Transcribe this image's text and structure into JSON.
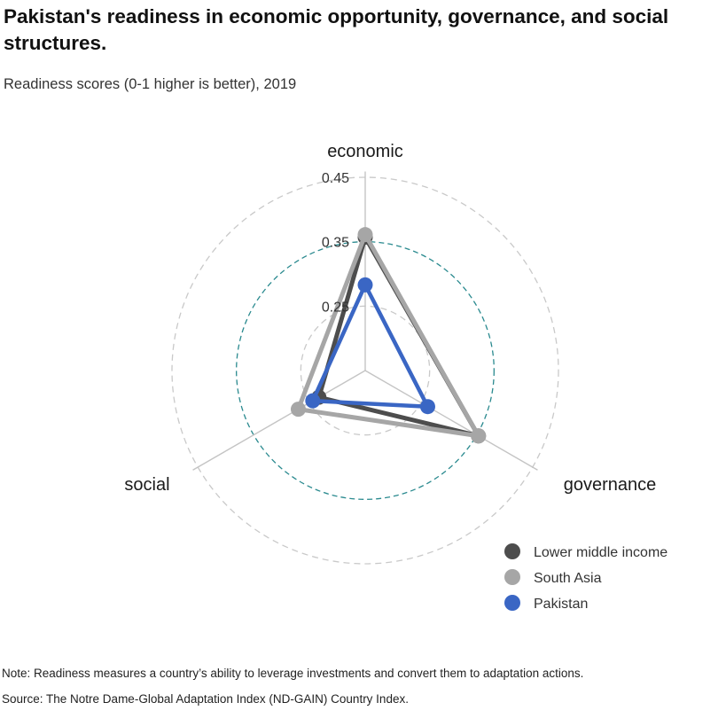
{
  "title": "Pakistan's readiness in economic opportunity, governance, and social structures.",
  "subtitle": "Readiness scores (0-1 higher is better), 2019",
  "note": "Note: Readiness measures a country’s ability to leverage investments and convert them to adaptation actions.",
  "source": "Source: The Notre Dame-Global Adaptation Index (ND-GAIN) Country Index.",
  "colors": {
    "lower_middle_income": "#4d4d4d",
    "south_asia": "#a6a6a6",
    "pakistan": "#3a66c4",
    "mid_ring": "#2a8a8f",
    "outer_ring": "#c9c9c9",
    "axis": "#c4c4c4"
  },
  "chart_data": {
    "type": "radar",
    "axes": [
      "economic",
      "governance",
      "social"
    ],
    "radial_ticks": [
      "0.25",
      "0.35",
      "0.45"
    ],
    "tick_values": [
      0.25,
      0.35,
      0.45
    ],
    "range": [
      0.15,
      0.45
    ],
    "legend_position": "bottom-right",
    "series": [
      {
        "name": "Lower middle income",
        "values": [
          0.357,
          0.353,
          0.233
        ],
        "color": "#4d4d4d"
      },
      {
        "name": "South Asia",
        "values": [
          0.361,
          0.353,
          0.27
        ],
        "color": "#a6a6a6"
      },
      {
        "name": "Pakistan",
        "values": [
          0.283,
          0.262,
          0.244
        ],
        "color": "#3a66c4"
      }
    ]
  }
}
